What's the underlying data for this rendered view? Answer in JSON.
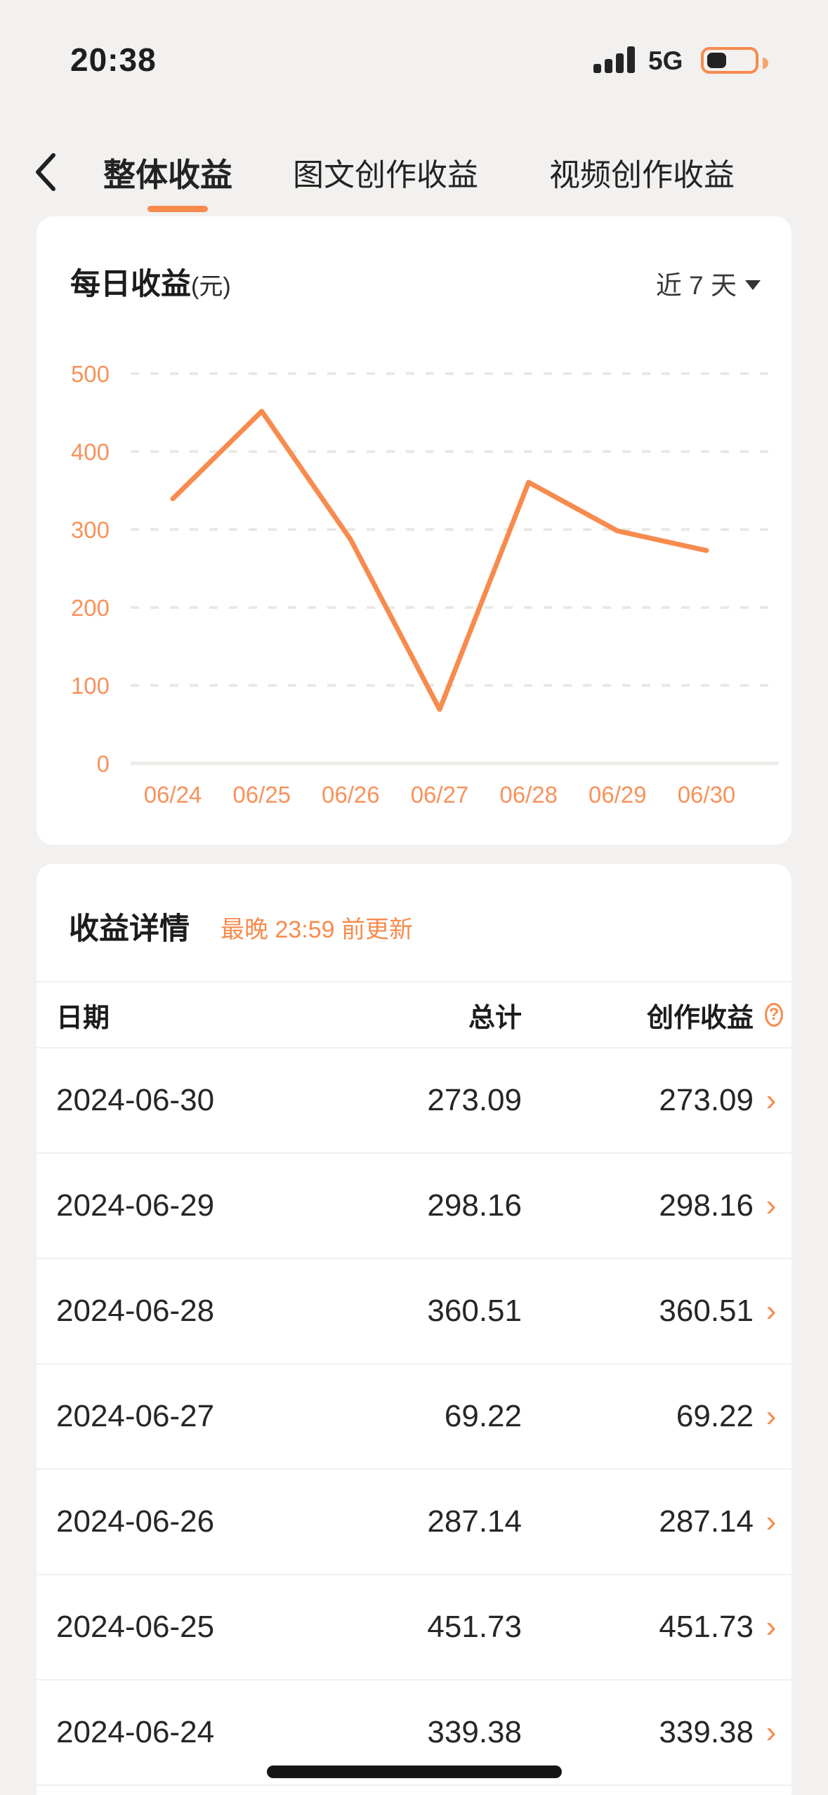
{
  "status_bar": {
    "time": "20:38",
    "network": "5G",
    "battery_level": "low"
  },
  "nav": {
    "tabs": [
      {
        "label": "整体收益",
        "active": true
      },
      {
        "label": "图文创作收益",
        "active": false
      },
      {
        "label": "视频创作收益",
        "active": false
      }
    ]
  },
  "chart_card": {
    "title": "每日收益",
    "unit": "(元)",
    "range_label": "近 7 天"
  },
  "chart_data": {
    "type": "line",
    "title": "每日收益(元)",
    "x_labels": [
      "06/24",
      "06/25",
      "06/26",
      "06/27",
      "06/28",
      "06/29",
      "06/30"
    ],
    "values": [
      339.38,
      451.73,
      287.14,
      69.22,
      360.51,
      298.16,
      273.09
    ],
    "yticks": [
      0,
      100,
      200,
      300,
      400,
      500
    ],
    "ylim": [
      0,
      500
    ],
    "grid": "horizontal-dashed, zero line solid",
    "legend": "none",
    "line_color": "#F78B4E",
    "tick_label_color": "#F7925A"
  },
  "details_card": {
    "title": "收益详情",
    "update_note": "最晚 23:59 前更新",
    "columns": {
      "date": "日期",
      "total": "总计",
      "creation": "创作收益"
    },
    "help_icon": "?",
    "rows": [
      {
        "date": "2024-06-30",
        "total": "273.09",
        "creation": "273.09"
      },
      {
        "date": "2024-06-29",
        "total": "298.16",
        "creation": "298.16"
      },
      {
        "date": "2024-06-28",
        "total": "360.51",
        "creation": "360.51"
      },
      {
        "date": "2024-06-27",
        "total": "69.22",
        "creation": "69.22"
      },
      {
        "date": "2024-06-26",
        "total": "287.14",
        "creation": "287.14"
      },
      {
        "date": "2024-06-25",
        "total": "451.73",
        "creation": "451.73"
      },
      {
        "date": "2024-06-24",
        "total": "339.38",
        "creation": "339.38"
      }
    ]
  },
  "colors": {
    "accent": "#F78B4E",
    "background": "#F2F1EF",
    "card": "#FFFFFF",
    "text_dark": "#1C1C1C",
    "text_body": "#262626",
    "separator": "#F1F0ED",
    "gridline": "#E9E8E4"
  }
}
